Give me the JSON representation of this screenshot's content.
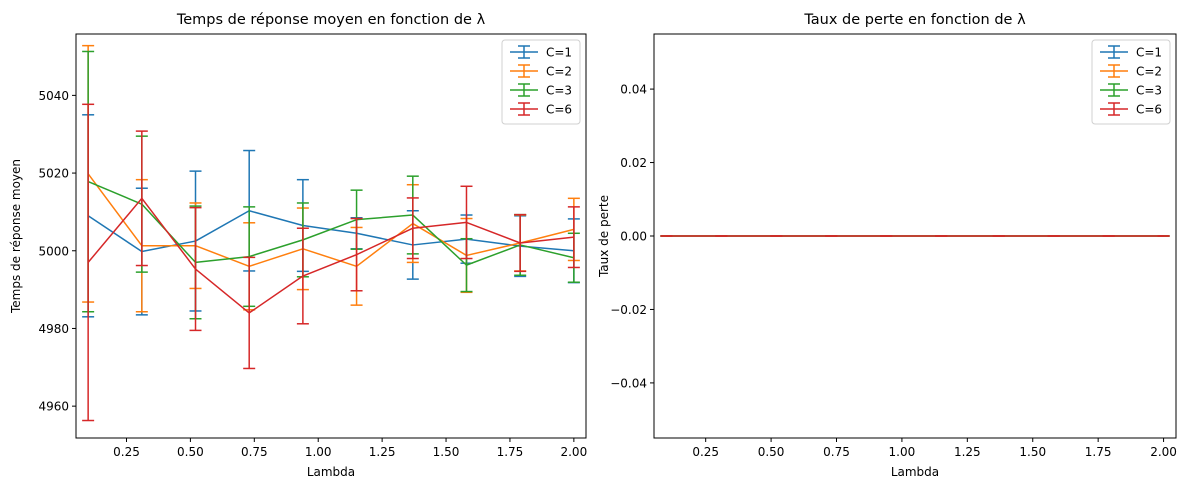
{
  "chart_data": [
    {
      "type": "line",
      "title": "Temps de réponse moyen en fonction de λ",
      "xlabel": "Lambda",
      "ylabel": "Temps de réponse moyen",
      "xlim": [
        0.0525,
        2.0475
      ],
      "ylim": [
        4951.8,
        5055.8
      ],
      "xticks": [
        0.25,
        0.5,
        0.75,
        1.0,
        1.25,
        1.5,
        1.75,
        2.0
      ],
      "xtick_labels": [
        "0.25",
        "0.50",
        "0.75",
        "1.00",
        "1.25",
        "1.50",
        "1.75",
        "2.00"
      ],
      "yticks": [
        4960,
        4980,
        5000,
        5020,
        5040
      ],
      "ytick_labels": [
        "4960",
        "4980",
        "5000",
        "5020",
        "5040"
      ],
      "legend": "top-right",
      "error_bars": true,
      "x": [
        0.1,
        0.31,
        0.52,
        0.73,
        0.94,
        1.15,
        1.37,
        1.58,
        1.79,
        2.0
      ],
      "series": [
        {
          "name": "C=1",
          "color": "#1f77b4",
          "values": [
            5009,
            4999.8,
            5002.5,
            5010.3,
            5006.5,
            5004.5,
            5001.5,
            5003,
            5001.2,
            5000
          ],
          "errors": [
            26,
            16.3,
            18,
            15.5,
            11.8,
            4,
            8.8,
            6.2,
            7.8,
            8.2
          ]
        },
        {
          "name": "C=2",
          "color": "#ff7f0e",
          "values": [
            5019.8,
            5001.3,
            5001.3,
            4996,
            5000.5,
            4996,
            5007,
            4998.8,
            5002,
            5005.5
          ],
          "errors": [
            33,
            17,
            11,
            11.2,
            10.5,
            10,
            10,
            9.5,
            7.2,
            8
          ]
        },
        {
          "name": "C=3",
          "color": "#2ca02c",
          "values": [
            5017.8,
            5012,
            4997,
            4998.5,
            5002.8,
            5008,
            5009.2,
            4996.3,
            5001.5,
            4998.2
          ],
          "errors": [
            33.5,
            17.5,
            14.5,
            12.8,
            9.5,
            7.6,
            10,
            6.8,
            7.8,
            6.3
          ]
        },
        {
          "name": "C=6",
          "color": "#d62728",
          "values": [
            4997,
            5013.5,
            4995.3,
            4984,
            4993.5,
            4999,
            5005.8,
            5007.3,
            5002,
            5003.5
          ],
          "errors": [
            40.7,
            17.3,
            15.8,
            14.3,
            12.3,
            9.3,
            7.8,
            9.3,
            7.3,
            7.8
          ]
        }
      ]
    },
    {
      "type": "line",
      "title": "Taux de perte en fonction de λ",
      "xlabel": "Lambda",
      "ylabel": "Taux de perte",
      "xlim": [
        0.0525,
        2.0475
      ],
      "ylim": [
        -0.055,
        0.055
      ],
      "xticks": [
        0.25,
        0.5,
        0.75,
        1.0,
        1.25,
        1.5,
        1.75,
        2.0
      ],
      "xtick_labels": [
        "0.25",
        "0.50",
        "0.75",
        "1.00",
        "1.25",
        "1.50",
        "1.75",
        "2.00"
      ],
      "yticks": [
        -0.04,
        -0.02,
        0.0,
        0.02,
        0.04
      ],
      "ytick_labels": [
        "−0.04",
        "−0.02",
        "0.00",
        "0.02",
        "0.04"
      ],
      "legend": "top-right",
      "error_bars": true,
      "x": [
        0.1,
        0.31,
        0.52,
        0.73,
        0.94,
        1.15,
        1.37,
        1.58,
        1.79,
        2.0
      ],
      "series": [
        {
          "name": "C=1",
          "color": "#1f77b4",
          "values": [
            0,
            0,
            0,
            0,
            0,
            0,
            0,
            0,
            0,
            0
          ],
          "errors": [
            0,
            0,
            0,
            0,
            0,
            0,
            0,
            0,
            0,
            0
          ]
        },
        {
          "name": "C=2",
          "color": "#ff7f0e",
          "values": [
            0,
            0,
            0,
            0,
            0,
            0,
            0,
            0,
            0,
            0
          ],
          "errors": [
            0,
            0,
            0,
            0,
            0,
            0,
            0,
            0,
            0,
            0
          ]
        },
        {
          "name": "C=3",
          "color": "#2ca02c",
          "values": [
            0,
            0,
            0,
            0,
            0,
            0,
            0,
            0,
            0,
            0
          ],
          "errors": [
            0,
            0,
            0,
            0,
            0,
            0,
            0,
            0,
            0,
            0
          ]
        },
        {
          "name": "C=6",
          "color": "#d62728",
          "values": [
            0,
            0,
            0,
            0,
            0,
            0,
            0,
            0,
            0,
            0
          ],
          "errors": [
            0,
            0,
            0,
            0,
            0,
            0,
            0,
            0,
            0,
            0
          ]
        }
      ]
    }
  ]
}
